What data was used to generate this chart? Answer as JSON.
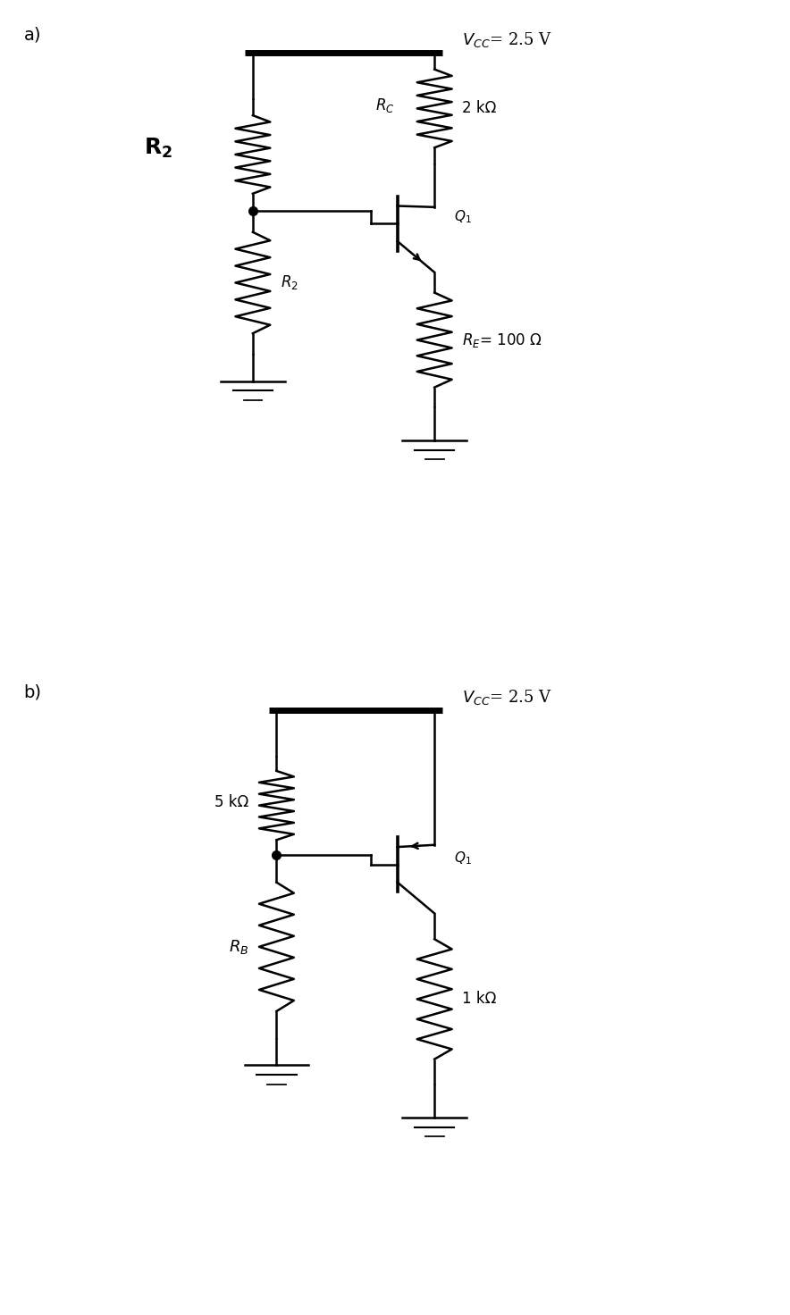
{
  "bg_color": "#ffffff",
  "line_color": "#000000",
  "lw": 1.8,
  "fig_width": 8.84,
  "fig_height": 14.72,
  "label_a": "a)",
  "label_b": "b)",
  "circuit_a": {
    "vcc_label_parts": [
      "$V_{CC}$",
      "= 2.5 V"
    ],
    "rc_label": "$R_C$",
    "rc_value": "2 kΩ",
    "r2_top_label": "$\\mathbf{R_2}$",
    "r2_bot_label": "$R_2$",
    "re_label": "$R_E$= 100 Ω",
    "q1_label": "$Q_1$"
  },
  "circuit_b": {
    "vcc_label_parts": [
      "$V_{CC}$",
      "= 2.5 V"
    ],
    "r1_label": "5 kΩ",
    "rb_label": "$R_B$",
    "re_label": "1 kΩ",
    "q1_label": "$Q_1$"
  }
}
